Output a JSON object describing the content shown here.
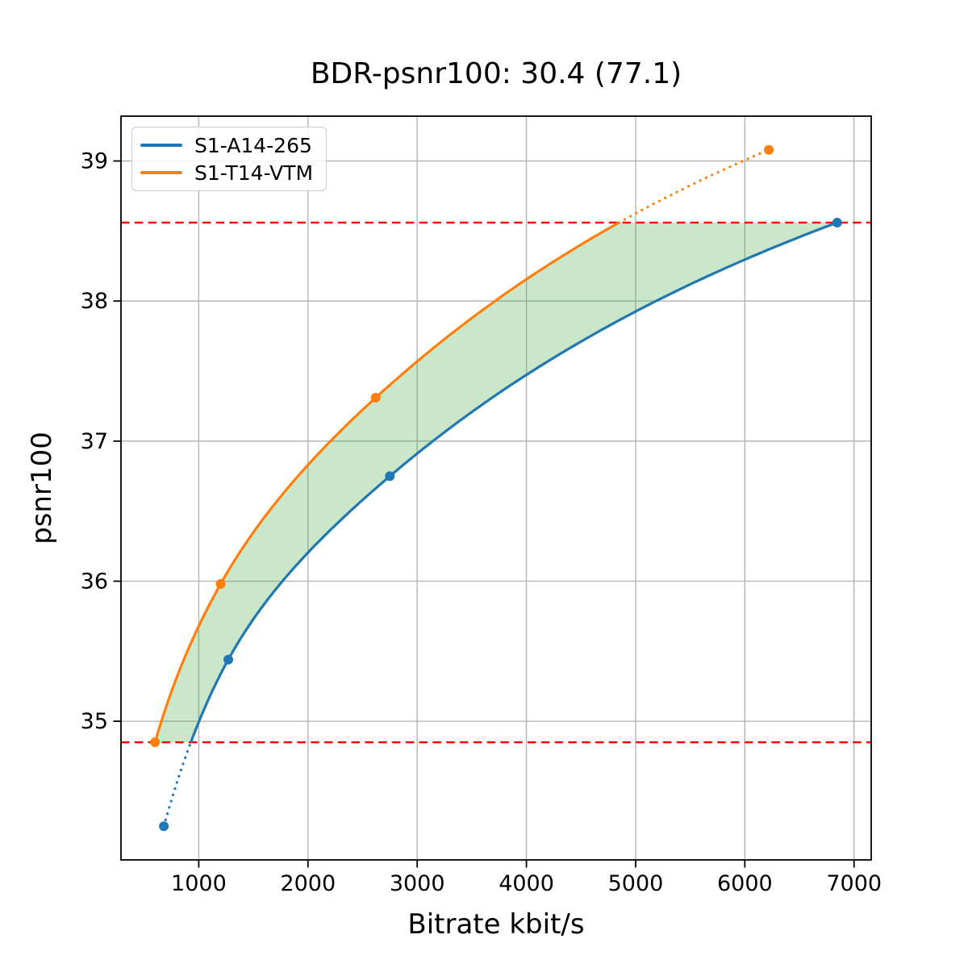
{
  "chart_data": {
    "type": "line",
    "title": "BDR-psnr100: 30.4 (77.1)",
    "xlabel": "Bitrate kbit/s",
    "ylabel": "psnr100",
    "xlim": [
      288,
      7157
    ],
    "ylim": [
      34.01,
      39.32
    ],
    "x_ticks": [
      1000,
      2000,
      3000,
      4000,
      5000,
      6000,
      7000
    ],
    "y_ticks": [
      35,
      36,
      37,
      38,
      39
    ],
    "grid": true,
    "grid_color": "#b0b0b0",
    "legend_position": "upper left",
    "series": [
      {
        "name": "S1-A14-265",
        "color": "#1f77b4",
        "points": [
          [
            680,
            34.25
          ],
          [
            1270,
            35.44
          ],
          [
            2750,
            36.75
          ],
          [
            6845,
            38.56
          ]
        ]
      },
      {
        "name": "S1-T14-VTM",
        "color": "#ff7f0e",
        "points": [
          [
            600,
            34.85
          ],
          [
            1200,
            35.98
          ],
          [
            2620,
            37.31
          ],
          [
            6220,
            39.08
          ]
        ]
      }
    ],
    "overlap_hlines": {
      "y_lower": 34.85,
      "y_upper": 38.56,
      "color": "#ff0000",
      "style": "dashed"
    },
    "fill_between": {
      "color": "#2ca02c",
      "opacity": 0.25
    }
  }
}
